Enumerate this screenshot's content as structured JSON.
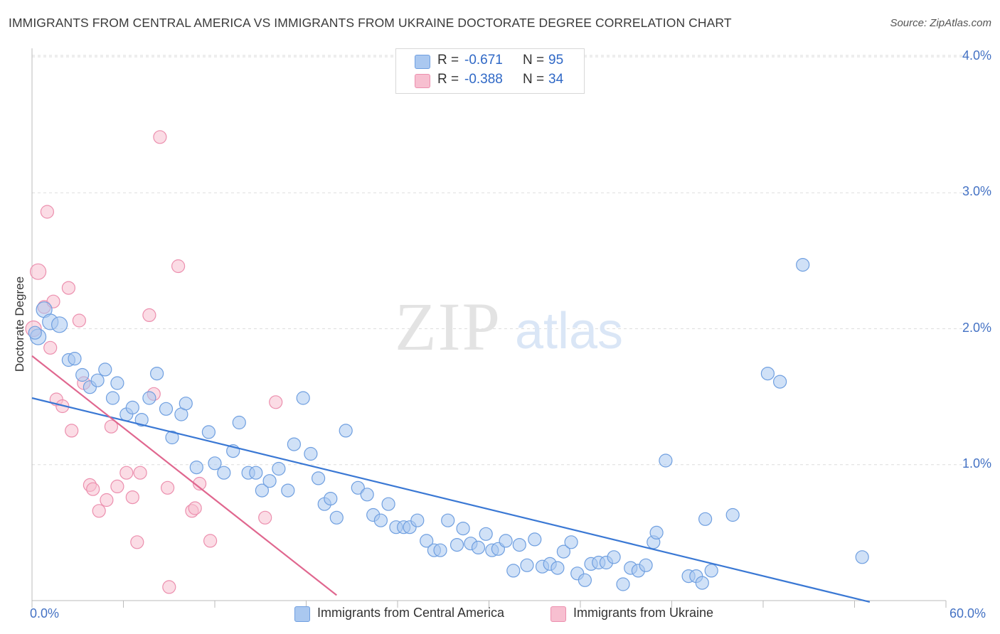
{
  "title": "IMMIGRANTS FROM CENTRAL AMERICA VS IMMIGRANTS FROM UKRAINE DOCTORATE DEGREE CORRELATION CHART",
  "source": "Source: ZipAtlas.com",
  "watermark": {
    "zip": "ZIP",
    "atlas": "atlas"
  },
  "legend_top": {
    "rows": [
      {
        "r_label": "R =",
        "r_value": "-0.671",
        "n_label": "N =",
        "n_value": "95"
      },
      {
        "r_label": "R =",
        "r_value": "-0.388",
        "n_label": "N =",
        "n_value": "34"
      }
    ]
  },
  "legend_bottom": {
    "items": [
      {
        "label": "Immigrants from Central America"
      },
      {
        "label": "Immigrants from Ukraine"
      }
    ]
  },
  "colors": {
    "blue_fill": "#aac8f0",
    "blue_stroke": "#6f9fe0",
    "blue_line": "#3a78d4",
    "pink_fill": "#f7bfd0",
    "pink_stroke": "#ec8fae",
    "pink_line": "#e0678f",
    "tick": "#4472c4",
    "grid": "#dedede"
  },
  "chart_data": {
    "type": "scatter",
    "title": "IMMIGRANTS FROM CENTRAL AMERICA VS IMMIGRANTS FROM UKRAINE DOCTORATE DEGREE CORRELATION CHART",
    "xlabel": "",
    "ylabel": "Doctorate Degree",
    "xlim": [
      0,
      60
    ],
    "ylim": [
      0,
      4.1
    ],
    "x_tick_labels": [
      "0.0%",
      "60.0%"
    ],
    "y_ticks": [
      1.0,
      2.0,
      3.0,
      4.0
    ],
    "y_tick_labels": [
      "1.0%",
      "2.0%",
      "3.0%",
      "4.0%"
    ],
    "grid": "horizontal dashed",
    "series": [
      {
        "name": "Immigrants from Central America",
        "color": "blue",
        "r": -0.671,
        "n": 95,
        "trend": {
          "x": [
            0,
            55
          ],
          "y": [
            1.49,
            -0.01
          ]
        },
        "points": [
          [
            0.4,
            1.94
          ],
          [
            0.8,
            2.14
          ],
          [
            1.2,
            2.05
          ],
          [
            1.8,
            2.03
          ],
          [
            2.4,
            1.77
          ],
          [
            2.8,
            1.78
          ],
          [
            3.3,
            1.66
          ],
          [
            3.8,
            1.57
          ],
          [
            4.3,
            1.62
          ],
          [
            4.8,
            1.7
          ],
          [
            5.3,
            1.49
          ],
          [
            5.6,
            1.6
          ],
          [
            6.2,
            1.37
          ],
          [
            6.6,
            1.42
          ],
          [
            7.2,
            1.33
          ],
          [
            7.7,
            1.49
          ],
          [
            8.2,
            1.67
          ],
          [
            8.8,
            1.41
          ],
          [
            9.2,
            1.2
          ],
          [
            9.8,
            1.37
          ],
          [
            10.1,
            1.45
          ],
          [
            10.8,
            0.98
          ],
          [
            11.6,
            1.24
          ],
          [
            12.0,
            1.01
          ],
          [
            12.6,
            0.94
          ],
          [
            13.2,
            1.1
          ],
          [
            13.6,
            1.31
          ],
          [
            14.2,
            0.94
          ],
          [
            14.7,
            0.94
          ],
          [
            15.1,
            0.81
          ],
          [
            15.6,
            0.88
          ],
          [
            16.2,
            0.97
          ],
          [
            16.8,
            0.81
          ],
          [
            17.2,
            1.15
          ],
          [
            17.8,
            1.49
          ],
          [
            18.3,
            1.08
          ],
          [
            18.8,
            0.9
          ],
          [
            19.2,
            0.71
          ],
          [
            19.6,
            0.75
          ],
          [
            20.0,
            0.61
          ],
          [
            20.6,
            1.25
          ],
          [
            21.4,
            0.83
          ],
          [
            22.0,
            0.78
          ],
          [
            22.4,
            0.63
          ],
          [
            22.9,
            0.59
          ],
          [
            23.4,
            0.71
          ],
          [
            23.9,
            0.54
          ],
          [
            24.4,
            0.54
          ],
          [
            24.8,
            0.54
          ],
          [
            25.3,
            0.59
          ],
          [
            25.9,
            0.44
          ],
          [
            26.4,
            0.37
          ],
          [
            26.8,
            0.37
          ],
          [
            27.3,
            0.59
          ],
          [
            27.9,
            0.41
          ],
          [
            28.3,
            0.53
          ],
          [
            28.8,
            0.42
          ],
          [
            29.3,
            0.39
          ],
          [
            29.8,
            0.49
          ],
          [
            30.2,
            0.37
          ],
          [
            30.6,
            0.38
          ],
          [
            31.1,
            0.44
          ],
          [
            31.6,
            0.22
          ],
          [
            32.0,
            0.41
          ],
          [
            32.5,
            0.26
          ],
          [
            33.0,
            0.45
          ],
          [
            33.5,
            0.25
          ],
          [
            34.0,
            0.27
          ],
          [
            34.5,
            0.24
          ],
          [
            34.9,
            0.36
          ],
          [
            35.4,
            0.43
          ],
          [
            35.8,
            0.2
          ],
          [
            36.3,
            0.15
          ],
          [
            36.7,
            0.27
          ],
          [
            37.2,
            0.28
          ],
          [
            37.7,
            0.28
          ],
          [
            38.2,
            0.32
          ],
          [
            38.8,
            0.12
          ],
          [
            39.3,
            0.24
          ],
          [
            39.8,
            0.22
          ],
          [
            40.3,
            0.26
          ],
          [
            40.8,
            0.43
          ],
          [
            41.0,
            0.5
          ],
          [
            41.6,
            1.03
          ],
          [
            43.1,
            0.18
          ],
          [
            43.6,
            0.18
          ],
          [
            44.0,
            0.13
          ],
          [
            44.2,
            0.6
          ],
          [
            44.6,
            0.22
          ],
          [
            46.0,
            0.63
          ],
          [
            48.3,
            1.67
          ],
          [
            49.1,
            1.61
          ],
          [
            50.6,
            2.47
          ],
          [
            54.5,
            0.32
          ],
          [
            0.2,
            1.97
          ]
        ]
      },
      {
        "name": "Immigrants from Ukraine",
        "color": "pink",
        "r": -0.388,
        "n": 34,
        "trend": {
          "x": [
            0,
            20
          ],
          "y": [
            1.8,
            0.04
          ]
        },
        "points": [
          [
            0.1,
            2.0
          ],
          [
            0.4,
            2.42
          ],
          [
            0.8,
            2.16
          ],
          [
            1.0,
            2.86
          ],
          [
            1.2,
            1.86
          ],
          [
            1.4,
            2.2
          ],
          [
            2.4,
            2.3
          ],
          [
            1.6,
            1.48
          ],
          [
            2.0,
            1.43
          ],
          [
            2.6,
            1.25
          ],
          [
            3.1,
            2.06
          ],
          [
            3.4,
            1.6
          ],
          [
            3.8,
            0.85
          ],
          [
            4.0,
            0.82
          ],
          [
            4.4,
            0.66
          ],
          [
            4.9,
            0.74
          ],
          [
            5.2,
            1.28
          ],
          [
            5.6,
            0.84
          ],
          [
            6.2,
            0.94
          ],
          [
            6.6,
            0.76
          ],
          [
            6.9,
            0.43
          ],
          [
            7.1,
            0.94
          ],
          [
            7.7,
            2.1
          ],
          [
            8.0,
            1.52
          ],
          [
            8.4,
            3.41
          ],
          [
            8.9,
            0.83
          ],
          [
            9.0,
            0.1
          ],
          [
            9.6,
            2.46
          ],
          [
            10.5,
            0.66
          ],
          [
            10.7,
            0.68
          ],
          [
            11.0,
            0.86
          ],
          [
            11.7,
            0.44
          ],
          [
            15.3,
            0.61
          ],
          [
            16.0,
            1.46
          ]
        ]
      }
    ]
  }
}
